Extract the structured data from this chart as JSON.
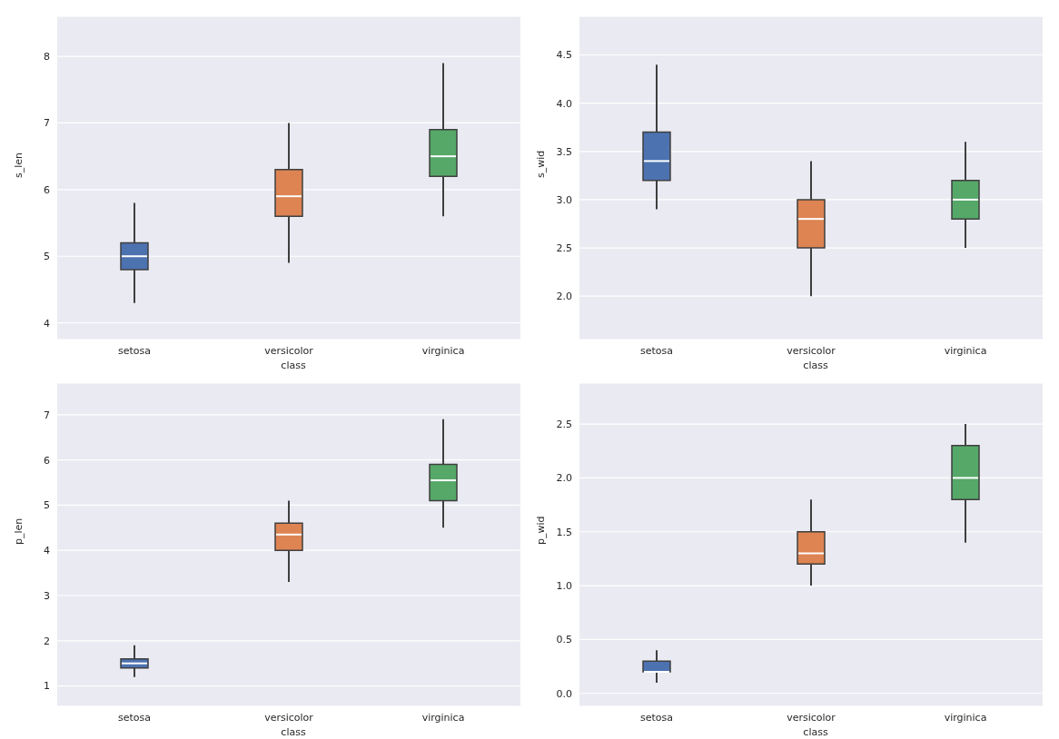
{
  "chart_data": [
    {
      "type": "box",
      "xlabel": "class",
      "ylabel": "s_len",
      "categories": [
        "setosa",
        "versicolor",
        "virginica"
      ],
      "colors": [
        "#4c72b0",
        "#dd8452",
        "#55a868"
      ],
      "boxes": [
        {
          "low": 4.3,
          "q1": 4.8,
          "median": 5.0,
          "q3": 5.2,
          "high": 5.8
        },
        {
          "low": 4.9,
          "q1": 5.6,
          "median": 5.9,
          "q3": 6.3,
          "high": 7.0
        },
        {
          "low": 5.6,
          "q1": 6.2,
          "median": 6.5,
          "q3": 6.9,
          "high": 7.9
        }
      ],
      "ylim": [
        3.75,
        8.6
      ],
      "yticks": [
        4,
        5,
        6,
        7,
        8
      ],
      "grid": "y"
    },
    {
      "type": "box",
      "xlabel": "class",
      "ylabel": "s_wid",
      "categories": [
        "setosa",
        "versicolor",
        "virginica"
      ],
      "colors": [
        "#4c72b0",
        "#dd8452",
        "#55a868"
      ],
      "boxes": [
        {
          "low": 2.9,
          "q1": 3.2,
          "median": 3.4,
          "q3": 3.7,
          "high": 4.4
        },
        {
          "low": 2.0,
          "q1": 2.5,
          "median": 2.8,
          "q3": 3.0,
          "high": 3.4
        },
        {
          "low": 2.5,
          "q1": 2.8,
          "median": 3.0,
          "q3": 3.2,
          "high": 3.6
        }
      ],
      "ylim": [
        1.55,
        4.9
      ],
      "yticks": [
        {
          "value": 2,
          "label": "2.0"
        },
        2.5,
        {
          "value": 3,
          "label": "3.0"
        },
        3.5,
        {
          "value": 4,
          "label": "4.0"
        },
        4.5
      ],
      "grid": "y"
    },
    {
      "type": "box",
      "xlabel": "class",
      "ylabel": "p_len",
      "categories": [
        "setosa",
        "versicolor",
        "virginica"
      ],
      "colors": [
        "#4c72b0",
        "#dd8452",
        "#55a868"
      ],
      "boxes": [
        {
          "low": 1.2,
          "q1": 1.4,
          "median": 1.5,
          "q3": 1.6,
          "high": 1.9
        },
        {
          "low": 3.3,
          "q1": 4.0,
          "median": 4.35,
          "q3": 4.6,
          "high": 5.1
        },
        {
          "low": 4.5,
          "q1": 5.1,
          "median": 5.55,
          "q3": 5.9,
          "high": 6.9
        }
      ],
      "ylim": [
        0.55,
        7.7
      ],
      "yticks": [
        1,
        2,
        3,
        4,
        5,
        6,
        7
      ],
      "grid": "y"
    },
    {
      "type": "box",
      "xlabel": "class",
      "ylabel": "p_wid",
      "categories": [
        "setosa",
        "versicolor",
        "virginica"
      ],
      "colors": [
        "#4c72b0",
        "#dd8452",
        "#55a868"
      ],
      "boxes": [
        {
          "low": 0.1,
          "q1": 0.2,
          "median": 0.2,
          "q3": 0.3,
          "high": 0.4
        },
        {
          "low": 1.0,
          "q1": 1.2,
          "median": 1.3,
          "q3": 1.5,
          "high": 1.8
        },
        {
          "low": 1.4,
          "q1": 1.8,
          "median": 2.0,
          "q3": 2.3,
          "high": 2.5
        }
      ],
      "ylim": [
        -0.12,
        2.88
      ],
      "yticks": [
        {
          "value": 0,
          "label": "0.0"
        },
        0.5,
        {
          "value": 1,
          "label": "1.0"
        },
        1.5,
        {
          "value": 2,
          "label": "2.0"
        },
        2.5
      ],
      "grid": "y"
    }
  ]
}
